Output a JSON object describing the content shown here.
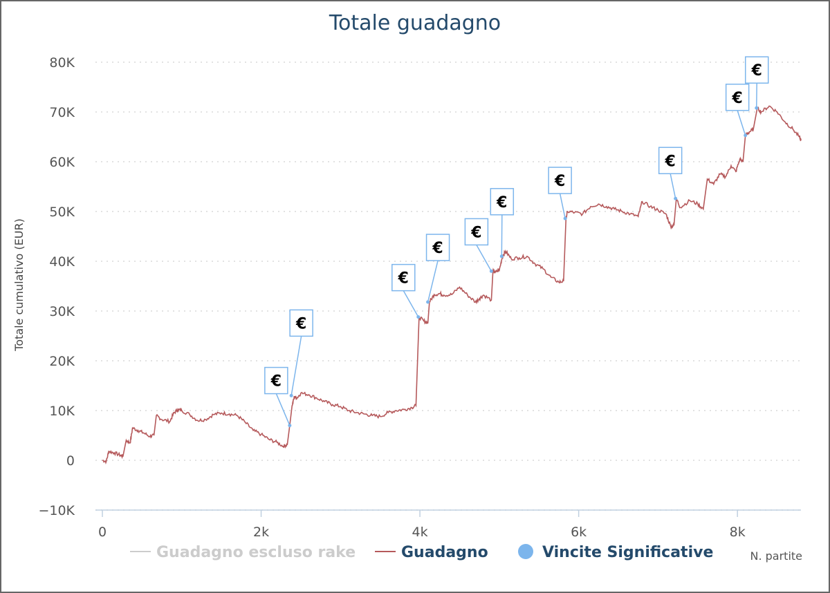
{
  "chart_data": {
    "type": "line",
    "title": "Totale guadagno",
    "xlabel": "N. partite",
    "ylabel": "Totale cumulativo (EUR)",
    "xlim": [
      0,
      8800
    ],
    "ylim": [
      -10000,
      80000
    ],
    "x_ticks": [
      0,
      2000,
      4000,
      6000,
      8000
    ],
    "x_tick_labels": [
      "0",
      "2k",
      "4k",
      "6k",
      "8k"
    ],
    "y_ticks": [
      -10000,
      0,
      10000,
      20000,
      30000,
      40000,
      50000,
      60000,
      70000,
      80000
    ],
    "y_tick_labels": [
      "−10K",
      "0",
      "10K",
      "20K",
      "30K",
      "40K",
      "50K",
      "60K",
      "70K",
      "80K"
    ],
    "grid": "horizontal dotted",
    "legend_position": "bottom",
    "legend": [
      {
        "name": "Guadagno escluso rake",
        "color": "#cccccc",
        "marker": "line",
        "hidden": true
      },
      {
        "name": "Guadagno",
        "color": "#b5595b",
        "marker": "line"
      },
      {
        "name": "Vincite Significative",
        "color": "#7cb5ec",
        "marker": "circle"
      }
    ],
    "series": [
      {
        "name": "Guadagno",
        "color": "#b5595b",
        "points": [
          [
            0,
            0
          ],
          [
            50,
            -200
          ],
          [
            80,
            1800
          ],
          [
            150,
            1500
          ],
          [
            230,
            1000
          ],
          [
            260,
            800
          ],
          [
            300,
            4000
          ],
          [
            350,
            3500
          ],
          [
            380,
            6500
          ],
          [
            450,
            6000
          ],
          [
            520,
            5500
          ],
          [
            600,
            4800
          ],
          [
            650,
            5000
          ],
          [
            680,
            9000
          ],
          [
            750,
            8200
          ],
          [
            850,
            7800
          ],
          [
            900,
            9500
          ],
          [
            950,
            10200
          ],
          [
            1000,
            10000
          ],
          [
            1100,
            9200
          ],
          [
            1200,
            8000
          ],
          [
            1300,
            8200
          ],
          [
            1400,
            9200
          ],
          [
            1500,
            9500
          ],
          [
            1600,
            9300
          ],
          [
            1700,
            9000
          ],
          [
            1800,
            7600
          ],
          [
            1900,
            6000
          ],
          [
            2000,
            5200
          ],
          [
            2100,
            4200
          ],
          [
            2200,
            3600
          ],
          [
            2280,
            2800
          ],
          [
            2330,
            3200
          ],
          [
            2360,
            7000
          ],
          [
            2390,
            11000
          ],
          [
            2420,
            12800
          ],
          [
            2450,
            12500
          ],
          [
            2500,
            13500
          ],
          [
            2600,
            13200
          ],
          [
            2700,
            12500
          ],
          [
            2800,
            11800
          ],
          [
            2900,
            11200
          ],
          [
            3000,
            10800
          ],
          [
            3100,
            10000
          ],
          [
            3200,
            9600
          ],
          [
            3300,
            9300
          ],
          [
            3400,
            9000
          ],
          [
            3500,
            8800
          ],
          [
            3600,
            9600
          ],
          [
            3700,
            10000
          ],
          [
            3800,
            10200
          ],
          [
            3900,
            10600
          ],
          [
            3950,
            11000
          ],
          [
            3990,
            28800
          ],
          [
            4050,
            28000
          ],
          [
            4100,
            27600
          ],
          [
            4120,
            31800
          ],
          [
            4180,
            33300
          ],
          [
            4250,
            33500
          ],
          [
            4300,
            33200
          ],
          [
            4400,
            33300
          ],
          [
            4500,
            34800
          ],
          [
            4600,
            33200
          ],
          [
            4700,
            31800
          ],
          [
            4750,
            32500
          ],
          [
            4800,
            33200
          ],
          [
            4900,
            32200
          ],
          [
            4920,
            38000
          ],
          [
            4950,
            37800
          ],
          [
            5000,
            38200
          ],
          [
            5040,
            41000
          ],
          [
            5080,
            42000
          ],
          [
            5150,
            40500
          ],
          [
            5250,
            40700
          ],
          [
            5350,
            41000
          ],
          [
            5450,
            39500
          ],
          [
            5550,
            38500
          ],
          [
            5650,
            36800
          ],
          [
            5750,
            35800
          ],
          [
            5810,
            36000
          ],
          [
            5840,
            48600
          ],
          [
            5860,
            50000
          ],
          [
            5950,
            49800
          ],
          [
            6050,
            49500
          ],
          [
            6150,
            51000
          ],
          [
            6250,
            51500
          ],
          [
            6350,
            51000
          ],
          [
            6450,
            50500
          ],
          [
            6550,
            50000
          ],
          [
            6650,
            49500
          ],
          [
            6750,
            49000
          ],
          [
            6800,
            52000
          ],
          [
            6900,
            51000
          ],
          [
            7000,
            50300
          ],
          [
            7100,
            49500
          ],
          [
            7160,
            47000
          ],
          [
            7200,
            47200
          ],
          [
            7230,
            52600
          ],
          [
            7280,
            50800
          ],
          [
            7400,
            52200
          ],
          [
            7500,
            51500
          ],
          [
            7570,
            50500
          ],
          [
            7620,
            56500
          ],
          [
            7700,
            55500
          ],
          [
            7780,
            57500
          ],
          [
            7850,
            57000
          ],
          [
            7920,
            59200
          ],
          [
            7980,
            58000
          ],
          [
            8030,
            60500
          ],
          [
            8070,
            60000
          ],
          [
            8100,
            65300
          ],
          [
            8150,
            66000
          ],
          [
            8200,
            66500
          ],
          [
            8250,
            70800
          ],
          [
            8300,
            70000
          ],
          [
            8400,
            71200
          ],
          [
            8500,
            70000
          ],
          [
            8600,
            68000
          ],
          [
            8700,
            66500
          ],
          [
            8780,
            65000
          ],
          [
            8800,
            64300
          ]
        ]
      },
      {
        "name": "Vincite Significative",
        "color": "#7cb5ec",
        "points": [
          [
            2360,
            7000
          ],
          [
            2380,
            13000
          ],
          [
            3980,
            28800
          ],
          [
            4100,
            31800
          ],
          [
            4900,
            38000
          ],
          [
            5030,
            41000
          ],
          [
            5830,
            48600
          ],
          [
            7220,
            52600
          ],
          [
            8100,
            65300
          ],
          [
            8240,
            70800
          ]
        ]
      }
    ],
    "flag_symbol": "€"
  }
}
